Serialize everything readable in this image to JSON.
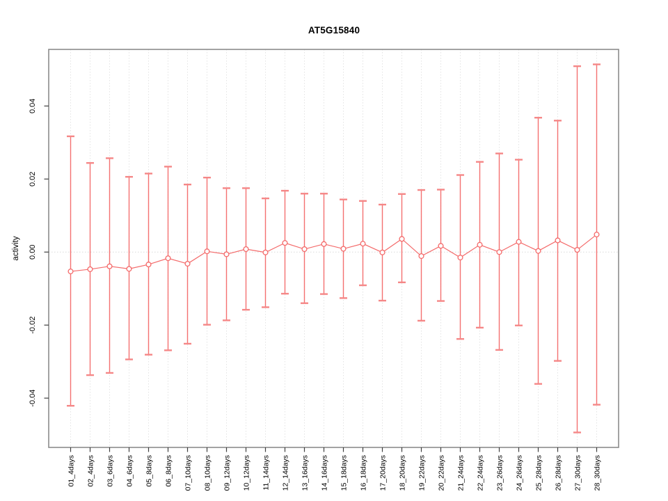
{
  "title": "AT5G15840",
  "chart_data": {
    "type": "line",
    "title": "AT5G15840",
    "xlabel": "",
    "ylabel": "activity",
    "categories": [
      "01_4days",
      "02_4days",
      "03_6days",
      "04_6days",
      "05_8days",
      "06_8days",
      "07_10days",
      "08_10days",
      "09_12days",
      "10_12days",
      "11_14days",
      "12_14days",
      "13_16days",
      "14_16days",
      "15_18days",
      "16_18days",
      "17_20days",
      "18_20days",
      "19_22days",
      "20_22days",
      "21_24days",
      "22_24days",
      "23_26days",
      "24_26days",
      "25_28days",
      "26_28days",
      "27_30days",
      "28_30days"
    ],
    "series": [
      {
        "name": "activity",
        "marker": "open-circle",
        "values": [
          -0.0053,
          -0.0047,
          -0.0039,
          -0.0046,
          -0.0034,
          -0.0017,
          -0.0032,
          0.0002,
          -0.0006,
          0.0008,
          -0.0001,
          0.0025,
          0.0008,
          0.0022,
          0.0009,
          0.0023,
          -0.0001,
          0.0036,
          -0.0011,
          0.0017,
          -0.0015,
          0.002,
          0.0,
          0.0028,
          0.0003,
          0.0032,
          0.0006,
          0.0048
        ],
        "error_upper": [
          0.0317,
          0.0244,
          0.0257,
          0.0206,
          0.0215,
          0.0234,
          0.0185,
          0.0204,
          0.0175,
          0.0175,
          0.0147,
          0.0168,
          0.016,
          0.016,
          0.0144,
          0.014,
          0.013,
          0.0159,
          0.017,
          0.0171,
          0.0211,
          0.0247,
          0.027,
          0.0253,
          0.0368,
          0.036,
          0.0509,
          0.0514
        ],
        "error_lower": [
          -0.0421,
          -0.0337,
          -0.0331,
          -0.0294,
          -0.0281,
          -0.0269,
          -0.0251,
          -0.0199,
          -0.0187,
          -0.0158,
          -0.0151,
          -0.0114,
          -0.014,
          -0.0115,
          -0.0126,
          -0.0091,
          -0.0133,
          -0.0083,
          -0.0188,
          -0.0134,
          -0.0238,
          -0.0207,
          -0.0268,
          -0.0201,
          -0.0361,
          -0.0298,
          -0.0494,
          -0.0418
        ]
      }
    ],
    "ylim": [
      -0.0535,
      0.0555
    ],
    "yticks": [
      -0.04,
      -0.02,
      0.0,
      0.02,
      0.04
    ],
    "ytick_labels": [
      "-0.04",
      "-0.02",
      "0.00",
      "0.02",
      "0.04"
    ],
    "grid": "vertical-dotted",
    "zero_line": true,
    "legend": "none",
    "colors": {
      "series": "#f46a6a",
      "cap": "#f58787",
      "grid": "#e3e3e3",
      "zero_line": "#d9d9d9",
      "frame": "#8c8c8c",
      "tick": "#3f3f3f",
      "text": "#000000",
      "background": "#ffffff"
    }
  }
}
